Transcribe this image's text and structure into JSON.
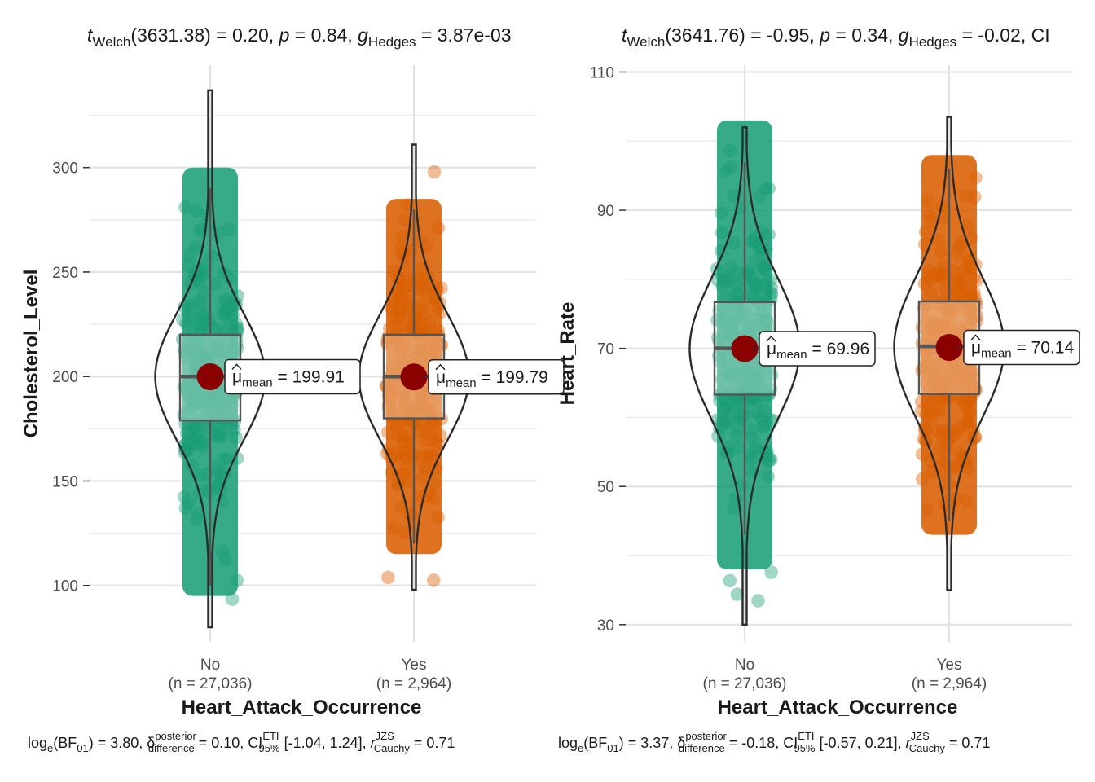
{
  "chart_data": [
    {
      "type": "violin-box",
      "title": {
        "pre": "t",
        "sub1": "Welch",
        "df": "(3631.38)",
        "stat": " = 0.20, ",
        "p_sym": "p",
        "p_val": " = 0.84, ",
        "g_sym": "g",
        "g_sub": "Hedges",
        "g_val": " = 3.87e-03"
      },
      "caption": {
        "log": "log",
        "log_sub": "e",
        "bf": "(BF",
        "bf_sub": "01",
        "bf_val": ") = 3.80, ",
        "delta": "δ",
        "delta_sup": "posterior",
        "delta_sub": "difference",
        "delta_val": " = 0.10, ",
        "ci": "CI",
        "ci_sup": "ETI",
        "ci_sub": "95%",
        "ci_val": " [-1.04, 1.24], ",
        "r": "r",
        "r_sup": "JZS",
        "r_sub": "Cauchy",
        "r_val": " = 0.71"
      },
      "xlabel": "Heart_Attack_Occurrence",
      "ylabel": "Cholesterol_Level",
      "ylim": [
        73,
        349
      ],
      "yticks": [
        100,
        150,
        200,
        250,
        300
      ],
      "yticks_label": [
        "100",
        "150",
        "200",
        "250",
        "300"
      ],
      "minor_grid": [
        125,
        175,
        225,
        275,
        325
      ],
      "categories": [
        "No",
        "Yes"
      ],
      "counts": [
        "(n = 27,036)",
        "(n = 2,964)"
      ],
      "colors": [
        "#1b9e77",
        "#d95f02"
      ],
      "box": [
        {
          "q1": 179,
          "median": 200,
          "q3": 220,
          "wlo": 100,
          "whi": 290
        },
        {
          "q1": 180,
          "median": 200,
          "q3": 220,
          "wlo": 120,
          "whi": 280
        }
      ],
      "violin_range": [
        [
          80,
          337
        ],
        [
          98,
          311
        ]
      ],
      "violin_center": [
        199.91,
        199.79
      ],
      "violin_sd": [
        30,
        30
      ],
      "means": [
        199.91,
        199.79
      ],
      "mean_labels": [
        {
          "mu": "μ",
          "sub": "mean",
          "val": " = 199.91"
        },
        {
          "mu": "μ",
          "sub": "mean",
          "val": " = 199.79"
        }
      ],
      "jitter_core": [
        [
          95,
          300
        ],
        [
          115,
          285
        ]
      ]
    },
    {
      "type": "violin-box",
      "title": {
        "pre": "t",
        "sub1": "Welch",
        "df": "(3641.76)",
        "stat": " = -0.95, ",
        "p_sym": "p",
        "p_val": " = 0.34, ",
        "g_sym": "g",
        "g_sub": "Hedges",
        "g_val": " = -0.02, CI"
      },
      "caption": {
        "log": "log",
        "log_sub": "e",
        "bf": "(BF",
        "bf_sub": "01",
        "bf_val": ") = 3.37, ",
        "delta": "δ",
        "delta_sup": "posterior",
        "delta_sub": "difference",
        "delta_val": " = -0.18, ",
        "ci": "CI",
        "ci_sup": "ETI",
        "ci_sub": "95%",
        "ci_val": " [-0.57, 0.21], ",
        "r": "r",
        "r_sup": "JZS",
        "r_sub": "Cauchy",
        "r_val": " = 0.71"
      },
      "xlabel": "Heart_Attack_Occurrence",
      "ylabel": "Heart_Rate",
      "ylim": [
        27.5,
        111
      ],
      "yticks": [
        30,
        50,
        70,
        90,
        110
      ],
      "yticks_label": [
        "30",
        "50",
        "70",
        "90",
        "110"
      ],
      "minor_grid": [
        40,
        60,
        80,
        100
      ],
      "categories": [
        "No",
        "Yes"
      ],
      "counts": [
        "(n = 27,036)",
        "(n = 2,964)"
      ],
      "colors": [
        "#1b9e77",
        "#d95f02"
      ],
      "box": [
        {
          "q1": 63.3,
          "median": 70,
          "q3": 76.7,
          "wlo": 43,
          "whi": 97
        },
        {
          "q1": 63.4,
          "median": 70.3,
          "q3": 76.8,
          "wlo": 45,
          "whi": 96
        }
      ],
      "violin_range": [
        [
          30,
          102
        ],
        [
          35,
          103.5
        ]
      ],
      "violin_center": [
        69.96,
        70.14
      ],
      "violin_sd": [
        10,
        10
      ],
      "means": [
        69.96,
        70.14
      ],
      "mean_labels": [
        {
          "mu": "μ",
          "sub": "mean",
          "val": " = 69.96"
        },
        {
          "mu": "μ",
          "sub": "mean",
          "val": " = 70.14"
        }
      ],
      "jitter_core": [
        [
          38,
          103
        ],
        [
          43,
          98
        ]
      ]
    }
  ]
}
